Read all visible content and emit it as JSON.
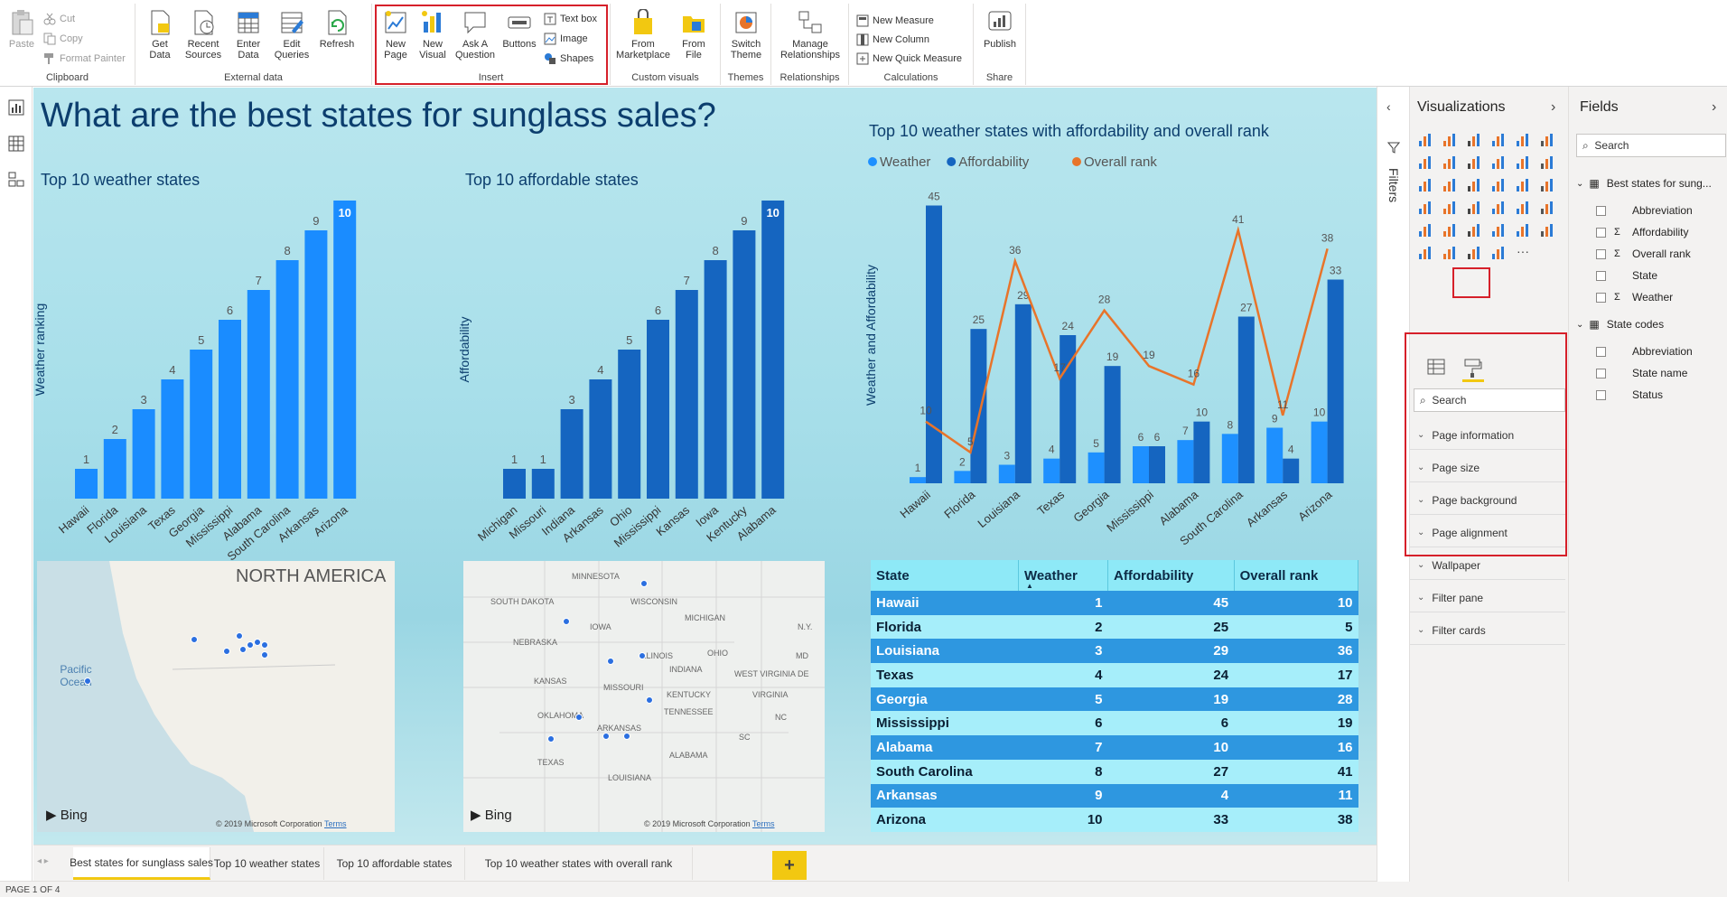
{
  "ribbon": {
    "clipboard": {
      "paste": "Paste",
      "cut": "Cut",
      "copy": "Copy",
      "format_painter": "Format Painter",
      "group": "Clipboard"
    },
    "external": {
      "get_data": "Get Data",
      "recent_sources": "Recent Sources",
      "enter_data": "Enter Data",
      "edit_queries": "Edit Queries",
      "refresh": "Refresh",
      "group": "External data"
    },
    "insert": {
      "new_page": "New Page",
      "new_visual": "New Visual",
      "ask_question": "Ask A Question",
      "buttons": "Buttons",
      "text_box": "Text box",
      "image": "Image",
      "shapes": "Shapes",
      "group": "Insert"
    },
    "custom": {
      "marketplace": "From Marketplace",
      "file": "From File",
      "group": "Custom visuals"
    },
    "themes": {
      "switch_theme": "Switch Theme",
      "group": "Themes"
    },
    "relationships": {
      "manage": "Manage Relationships",
      "group": "Relationships"
    },
    "calculations": {
      "new_measure": "New Measure",
      "new_column": "New Column",
      "new_quick_measure": "New Quick Measure",
      "group": "Calculations"
    },
    "share": {
      "publish": "Publish",
      "group": "Share"
    }
  },
  "report": {
    "title": "What are the best states for sunglass sales?",
    "weather_chart": {
      "title": "Top 10 weather states",
      "ylabel": "Weather ranking"
    },
    "afford_chart": {
      "title": "Top 10 affordable states",
      "ylabel": "Affordability"
    },
    "combo_chart": {
      "title": "Top 10 weather states with affordability and overall rank",
      "ylabel": "Weather and Affordability"
    },
    "map1": {
      "region": "NORTH AMERICA",
      "ocean": "Pacific Ocean",
      "bing": "Bing",
      "copyright": "© 2019 Microsoft Corporation",
      "terms": "Terms"
    },
    "map2": {
      "bing": "Bing",
      "copyright": "© 2019 Microsoft Corporation",
      "terms": "Terms",
      "labels": [
        "MINNESOTA",
        "WISCONSIN",
        "SOUTH DAKOTA",
        "MICHIGAN",
        "IOWA",
        "NEBRASKA",
        "ILLINOIS",
        "OHIO",
        "INDIANA",
        "KANSAS",
        "MISSOURI",
        "WEST VIRGINIA",
        "KENTUCKY",
        "VIRGINIA",
        "OKLAHOMA",
        "TENNESSEE",
        "NC",
        "ARKANSAS",
        "SC",
        "ALABAMA",
        "TEXAS",
        "LOUISIANA",
        "N.Y.",
        "DE",
        "MD"
      ]
    },
    "table": {
      "headers": [
        "State",
        "Weather",
        "Affordability",
        "Overall rank"
      ],
      "rows": [
        [
          "Hawaii",
          "1",
          "45",
          "10"
        ],
        [
          "Florida",
          "2",
          "25",
          "5"
        ],
        [
          "Louisiana",
          "3",
          "29",
          "36"
        ],
        [
          "Texas",
          "4",
          "24",
          "17"
        ],
        [
          "Georgia",
          "5",
          "19",
          "28"
        ],
        [
          "Mississippi",
          "6",
          "6",
          "19"
        ],
        [
          "Alabama",
          "7",
          "10",
          "16"
        ],
        [
          "South Carolina",
          "8",
          "27",
          "41"
        ],
        [
          "Arkansas",
          "9",
          "4",
          "11"
        ],
        [
          "Arizona",
          "10",
          "33",
          "38"
        ]
      ]
    }
  },
  "chart_data": [
    {
      "type": "bar",
      "title": "Top 10 weather states",
      "ylabel": "Weather ranking",
      "categories": [
        "Hawaii",
        "Florida",
        "Louisiana",
        "Texas",
        "Georgia",
        "Mississippi",
        "Alabama",
        "South Carolina",
        "Arkansas",
        "Arizona"
      ],
      "values": [
        1,
        2,
        3,
        4,
        5,
        6,
        7,
        8,
        9,
        10
      ],
      "ylim": [
        0,
        10
      ]
    },
    {
      "type": "bar",
      "title": "Top 10 affordable states",
      "ylabel": "Affordability",
      "categories": [
        "Michigan",
        "Missouri",
        "Indiana",
        "Arkansas",
        "Ohio",
        "Mississippi",
        "Kansas",
        "Iowa",
        "Kentucky",
        "Alabama"
      ],
      "values": [
        1,
        1,
        3,
        4,
        5,
        6,
        7,
        8,
        9,
        10
      ],
      "ylim": [
        0,
        10
      ]
    },
    {
      "type": "bar",
      "title": "Top 10 weather states with affordability and overall rank",
      "ylabel": "Weather and Affordability",
      "categories": [
        "Hawaii",
        "Florida",
        "Louisiana",
        "Texas",
        "Georgia",
        "Mississippi",
        "Alabama",
        "South Carolina",
        "Arkansas",
        "Arizona"
      ],
      "legend": [
        "Weather",
        "Affordability",
        "Overall rank"
      ],
      "series": [
        {
          "name": "Weather",
          "kind": "bar",
          "values": [
            1,
            2,
            3,
            4,
            5,
            6,
            7,
            8,
            9,
            10
          ]
        },
        {
          "name": "Affordability",
          "kind": "bar",
          "values": [
            45,
            25,
            29,
            24,
            19,
            6,
            10,
            27,
            4,
            33
          ]
        },
        {
          "name": "Overall rank",
          "kind": "line",
          "values": [
            10,
            5,
            36,
            17,
            28,
            19,
            16,
            41,
            11,
            38
          ]
        }
      ],
      "ylim": [
        0,
        48
      ]
    }
  ],
  "colors": {
    "weather": "#1e90ff",
    "afford_bar": "#1565c0",
    "overall": "#e8742a",
    "light_bar": "#1a8cff"
  },
  "tabs": [
    "Best states for sunglass sales",
    "Top 10 weather states",
    "Top 10 affordable states",
    "Top 10 weather states with overall rank"
  ],
  "add_tab": "+",
  "status": "PAGE 1 OF 4",
  "filters_label": "Filters",
  "visualizations": {
    "title": "Visualizations",
    "search": "Search",
    "format_sections": [
      "Page information",
      "Page size",
      "Page background",
      "Page alignment",
      "Wallpaper",
      "Filter pane",
      "Filter cards"
    ]
  },
  "fields": {
    "title": "Fields",
    "search": "Search",
    "tables": [
      {
        "name": "Best states for sung...",
        "fields": [
          {
            "name": "Abbreviation",
            "sigma": false
          },
          {
            "name": "Affordability",
            "sigma": true
          },
          {
            "name": "Overall rank",
            "sigma": true
          },
          {
            "name": "State",
            "sigma": false
          },
          {
            "name": "Weather",
            "sigma": true
          }
        ]
      },
      {
        "name": "State codes",
        "fields": [
          {
            "name": "Abbreviation",
            "sigma": false
          },
          {
            "name": "State name",
            "sigma": false
          },
          {
            "name": "Status",
            "sigma": false
          }
        ]
      }
    ]
  }
}
